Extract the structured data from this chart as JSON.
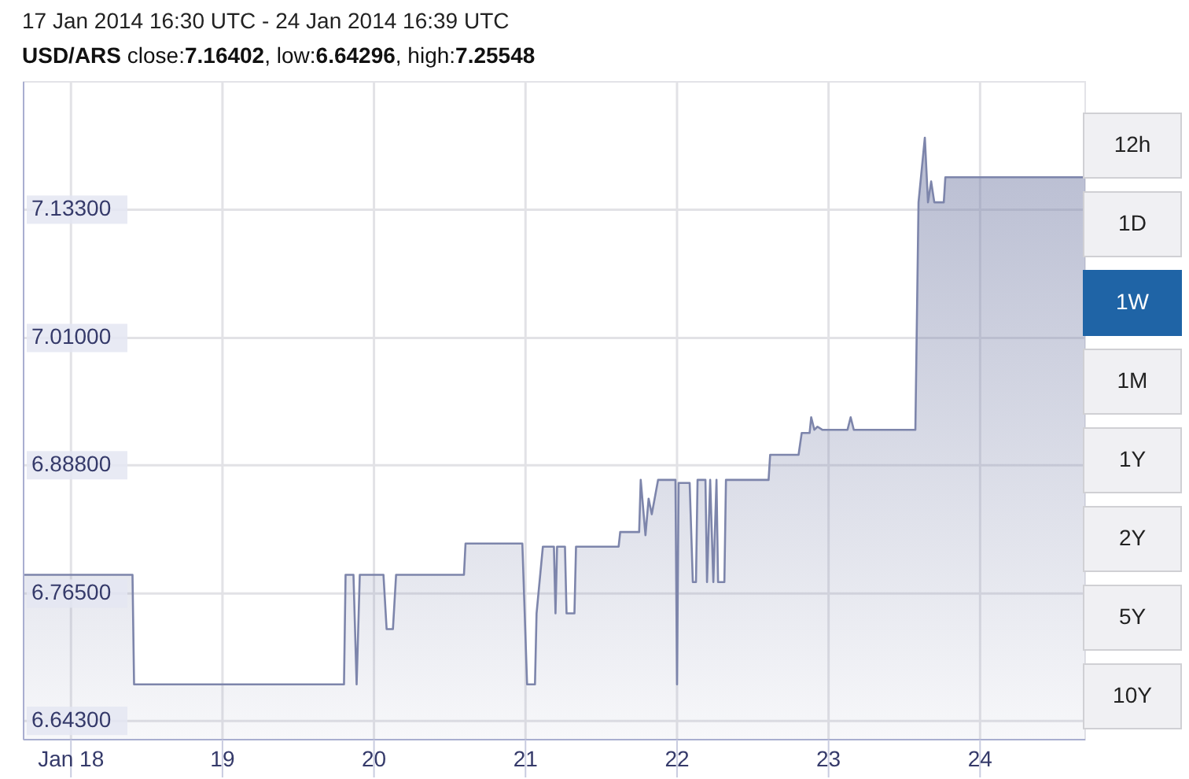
{
  "chart_data": {
    "type": "area",
    "title": "17 Jan 2014 16:30 UTC - 24 Jan 2014 16:39 UTC",
    "subtitle": "USD/ARS close:7.16402, low:6.64296, high:7.25548",
    "x": [
      "2014-01-17T16:30",
      "2014-01-18T09:45",
      "2014-01-18T10:00",
      "2014-01-19T19:15",
      "2014-01-19T19:30",
      "2014-01-19T20:45",
      "2014-01-19T21:15",
      "2014-01-19T21:45",
      "2014-01-20T01:30",
      "2014-01-20T02:00",
      "2014-01-20T03:00",
      "2014-01-20T03:30",
      "2014-01-20T14:15",
      "2014-01-20T14:30",
      "2014-01-20T23:30",
      "2014-01-21T00:15",
      "2014-01-21T01:30",
      "2014-01-21T01:45",
      "2014-01-21T02:45",
      "2014-01-21T04:30",
      "2014-01-21T04:45",
      "2014-01-21T05:00",
      "2014-01-21T06:15",
      "2014-01-21T06:30",
      "2014-01-21T07:45",
      "2014-01-21T08:00",
      "2014-01-21T14:45",
      "2014-01-21T15:00",
      "2014-01-21T18:00",
      "2014-01-21T18:15",
      "2014-01-21T19:00",
      "2014-01-21T19:30",
      "2014-01-21T20:00",
      "2014-01-21T21:00",
      "2014-01-21T23:45",
      "2014-01-22T00:00",
      "2014-01-22T00:15",
      "2014-01-22T02:00",
      "2014-01-22T02:30",
      "2014-01-22T03:00",
      "2014-01-22T03:15",
      "2014-01-22T04:30",
      "2014-01-22T04:45",
      "2014-01-22T05:15",
      "2014-01-22T05:45",
      "2014-01-22T06:15",
      "2014-01-22T06:30",
      "2014-01-22T07:30",
      "2014-01-22T07:45",
      "2014-01-22T14:30",
      "2014-01-22T14:45",
      "2014-01-22T19:15",
      "2014-01-22T19:45",
      "2014-01-22T21:00",
      "2014-01-22T21:15",
      "2014-01-22T21:45",
      "2014-01-22T22:15",
      "2014-01-22T23:00",
      "2014-01-23T03:00",
      "2014-01-23T03:30",
      "2014-01-23T04:00",
      "2014-01-23T13:45",
      "2014-01-23T14:15",
      "2014-01-23T15:15",
      "2014-01-23T15:45",
      "2014-01-23T16:15",
      "2014-01-23T16:45",
      "2014-01-23T18:15",
      "2014-01-23T18:30",
      "2014-01-24T16:39"
    ],
    "series": [
      {
        "color": "#7d85ab",
        "values": [
          6.783,
          6.783,
          6.678,
          6.678,
          6.783,
          6.783,
          6.678,
          6.783,
          6.783,
          6.731,
          6.731,
          6.783,
          6.783,
          6.813,
          6.813,
          6.678,
          6.678,
          6.746,
          6.81,
          6.81,
          6.746,
          6.81,
          6.81,
          6.746,
          6.746,
          6.81,
          6.81,
          6.824,
          6.824,
          6.874,
          6.821,
          6.856,
          6.841,
          6.874,
          6.874,
          6.678,
          6.871,
          6.871,
          6.776,
          6.776,
          6.874,
          6.874,
          6.776,
          6.874,
          6.776,
          6.874,
          6.776,
          6.776,
          6.874,
          6.874,
          6.898,
          6.898,
          6.919,
          6.919,
          6.934,
          6.922,
          6.925,
          6.922,
          6.922,
          6.934,
          6.922,
          6.922,
          7.14,
          7.202,
          7.14,
          7.16,
          7.14,
          7.14,
          7.164,
          7.164
        ]
      }
    ],
    "xlim": [
      "2014-01-17T16:30",
      "2014-01-24T16:39"
    ],
    "xticks": [
      {
        "value": "2014-01-18",
        "label": "Jan 18"
      },
      {
        "value": "2014-01-19",
        "label": "19"
      },
      {
        "value": "2014-01-20",
        "label": "20"
      },
      {
        "value": "2014-01-21",
        "label": "21"
      },
      {
        "value": "2014-01-22",
        "label": "22"
      },
      {
        "value": "2014-01-23",
        "label": "23"
      },
      {
        "value": "2014-01-24",
        "label": "24"
      }
    ],
    "ylim": [
      6.625,
      7.2555
    ],
    "yticks": [
      {
        "value": 6.643,
        "label": "6.64300"
      },
      {
        "value": 6.765,
        "label": "6.76500"
      },
      {
        "value": 6.888,
        "label": "6.88800"
      },
      {
        "value": 7.01,
        "label": "7.01000"
      },
      {
        "value": 7.133,
        "label": "7.13300"
      }
    ],
    "grid": true,
    "annotations": [
      "12h",
      "1D",
      "1W",
      "1M",
      "1Y",
      "2Y",
      "5Y",
      "10Y"
    ]
  }
}
